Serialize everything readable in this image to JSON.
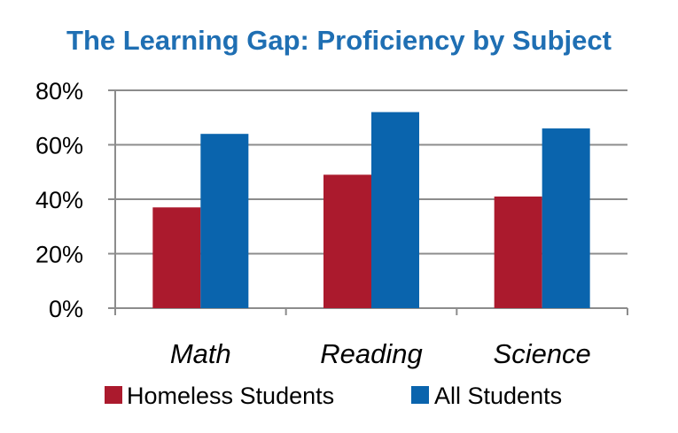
{
  "chart_data": {
    "type": "bar",
    "title": "The Learning Gap: Proficiency by Subject",
    "categories": [
      "Math",
      "Reading",
      "Science"
    ],
    "series": [
      {
        "name": "Homeless Students",
        "values": [
          37,
          49,
          41
        ],
        "color": "#ab1a2d"
      },
      {
        "name": "All Students",
        "values": [
          64,
          72,
          66
        ],
        "color": "#0a64ad"
      }
    ],
    "ylim": [
      0,
      80
    ],
    "yticks": [
      0,
      20,
      40,
      60,
      80
    ],
    "ytick_labels": [
      "0%",
      "20%",
      "40%",
      "60%",
      "80%"
    ],
    "xlabel": "",
    "ylabel": "",
    "grid": true,
    "legend_position": "bottom",
    "title_color": "#1f6fb3"
  }
}
